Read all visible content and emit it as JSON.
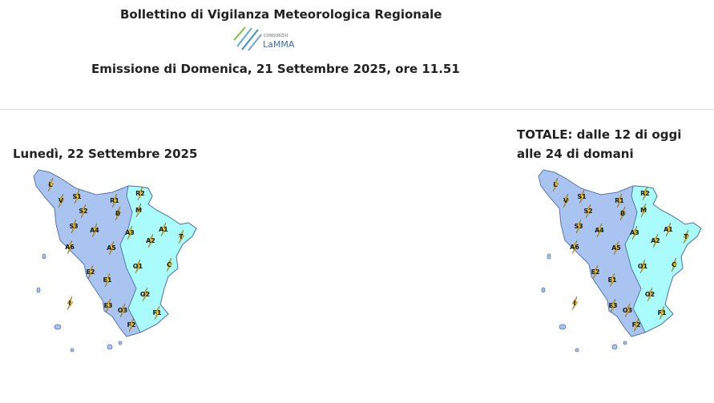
{
  "header": {
    "title": "Bollettino di Vigilanza Meteorologica Regionale",
    "logo": {
      "small": "CONSORZIO",
      "name": "LaMMA"
    },
    "emission": {
      "prefix": "Emissione di",
      "date": "Domenica, 21 Settembre 2025",
      "sep": ",",
      "time": "ore 11.51"
    }
  },
  "maps": [
    {
      "title": [
        "Lunedì, 22 Settembre 2025"
      ],
      "zones": [
        "L",
        "V",
        "S1",
        "S2",
        "S3",
        "R1",
        "R2",
        "M",
        "B",
        "A4",
        "A3",
        "A1",
        "T",
        "A6",
        "A5",
        "A2",
        "O1",
        "C",
        "E2",
        "E1",
        "O2",
        "I",
        "E3",
        "O3",
        "F1",
        "F2"
      ]
    },
    {
      "title": [
        "TOTALE: dalle 12 di oggi",
        "alle 24 di domani"
      ],
      "zones": [
        "L",
        "V",
        "S1",
        "S2",
        "S3",
        "R1",
        "R2",
        "M",
        "B",
        "A4",
        "A3",
        "A1",
        "T",
        "A6",
        "A5",
        "A2",
        "O1",
        "C",
        "E2",
        "E1",
        "O2",
        "I",
        "E3",
        "O3",
        "F1",
        "F2"
      ]
    }
  ]
}
